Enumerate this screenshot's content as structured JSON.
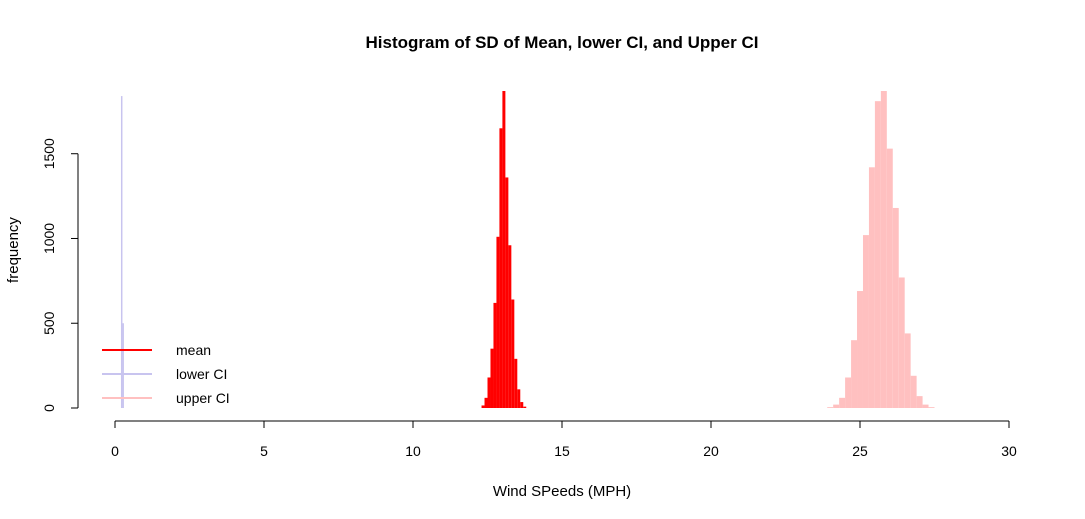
{
  "chart_data": {
    "type": "bar",
    "title": "Histogram of SD of Mean, lower CI, and Upper CI",
    "xlabel": "Wind SPeeds (MPH)",
    "ylabel": "frequency",
    "xlim": [
      0,
      30
    ],
    "ylim": [
      0,
      1870
    ],
    "x_ticks": [
      "0",
      "5",
      "10",
      "15",
      "20",
      "25",
      "30"
    ],
    "y_ticks": [
      "0",
      "500",
      "1000",
      "1500"
    ],
    "grid": false,
    "legend_position": "bottom-left",
    "series": [
      {
        "name": "mean",
        "color": "#ff0000",
        "bins": [
          {
            "x0": 12.3,
            "x1": 12.4,
            "count": 15
          },
          {
            "x0": 12.4,
            "x1": 12.5,
            "count": 60
          },
          {
            "x0": 12.5,
            "x1": 12.6,
            "count": 180
          },
          {
            "x0": 12.6,
            "x1": 12.7,
            "count": 350
          },
          {
            "x0": 12.7,
            "x1": 12.8,
            "count": 620
          },
          {
            "x0": 12.8,
            "x1": 12.9,
            "count": 1010
          },
          {
            "x0": 12.9,
            "x1": 13.0,
            "count": 1650
          },
          {
            "x0": 13.0,
            "x1": 13.1,
            "count": 1870
          },
          {
            "x0": 13.1,
            "x1": 13.2,
            "count": 1360
          },
          {
            "x0": 13.2,
            "x1": 13.3,
            "count": 960
          },
          {
            "x0": 13.3,
            "x1": 13.4,
            "count": 640
          },
          {
            "x0": 13.4,
            "x1": 13.5,
            "count": 290
          },
          {
            "x0": 13.5,
            "x1": 13.6,
            "count": 110
          },
          {
            "x0": 13.6,
            "x1": 13.7,
            "count": 35
          },
          {
            "x0": 13.7,
            "x1": 13.8,
            "count": 8
          }
        ]
      },
      {
        "name": "lower CI",
        "color": "#c8c4ef",
        "bins": [
          {
            "x0": 0.2,
            "x1": 0.25,
            "count": 1840
          },
          {
            "x0": 0.25,
            "x1": 0.3,
            "count": 500
          }
        ]
      },
      {
        "name": "upper CI",
        "color": "#ffc0c0",
        "bins": [
          {
            "x0": 23.9,
            "x1": 24.1,
            "count": 5
          },
          {
            "x0": 24.1,
            "x1": 24.3,
            "count": 20
          },
          {
            "x0": 24.3,
            "x1": 24.5,
            "count": 60
          },
          {
            "x0": 24.5,
            "x1": 24.7,
            "count": 180
          },
          {
            "x0": 24.7,
            "x1": 24.9,
            "count": 400
          },
          {
            "x0": 24.9,
            "x1": 25.1,
            "count": 690
          },
          {
            "x0": 25.1,
            "x1": 25.3,
            "count": 1020
          },
          {
            "x0": 25.3,
            "x1": 25.5,
            "count": 1420
          },
          {
            "x0": 25.5,
            "x1": 25.7,
            "count": 1810
          },
          {
            "x0": 25.7,
            "x1": 25.9,
            "count": 1870
          },
          {
            "x0": 25.9,
            "x1": 26.1,
            "count": 1530
          },
          {
            "x0": 26.1,
            "x1": 26.3,
            "count": 1180
          },
          {
            "x0": 26.3,
            "x1": 26.5,
            "count": 770
          },
          {
            "x0": 26.5,
            "x1": 26.7,
            "count": 440
          },
          {
            "x0": 26.7,
            "x1": 26.9,
            "count": 190
          },
          {
            "x0": 26.9,
            "x1": 27.1,
            "count": 70
          },
          {
            "x0": 27.1,
            "x1": 27.3,
            "count": 20
          },
          {
            "x0": 27.3,
            "x1": 27.5,
            "count": 5
          }
        ]
      }
    ]
  }
}
